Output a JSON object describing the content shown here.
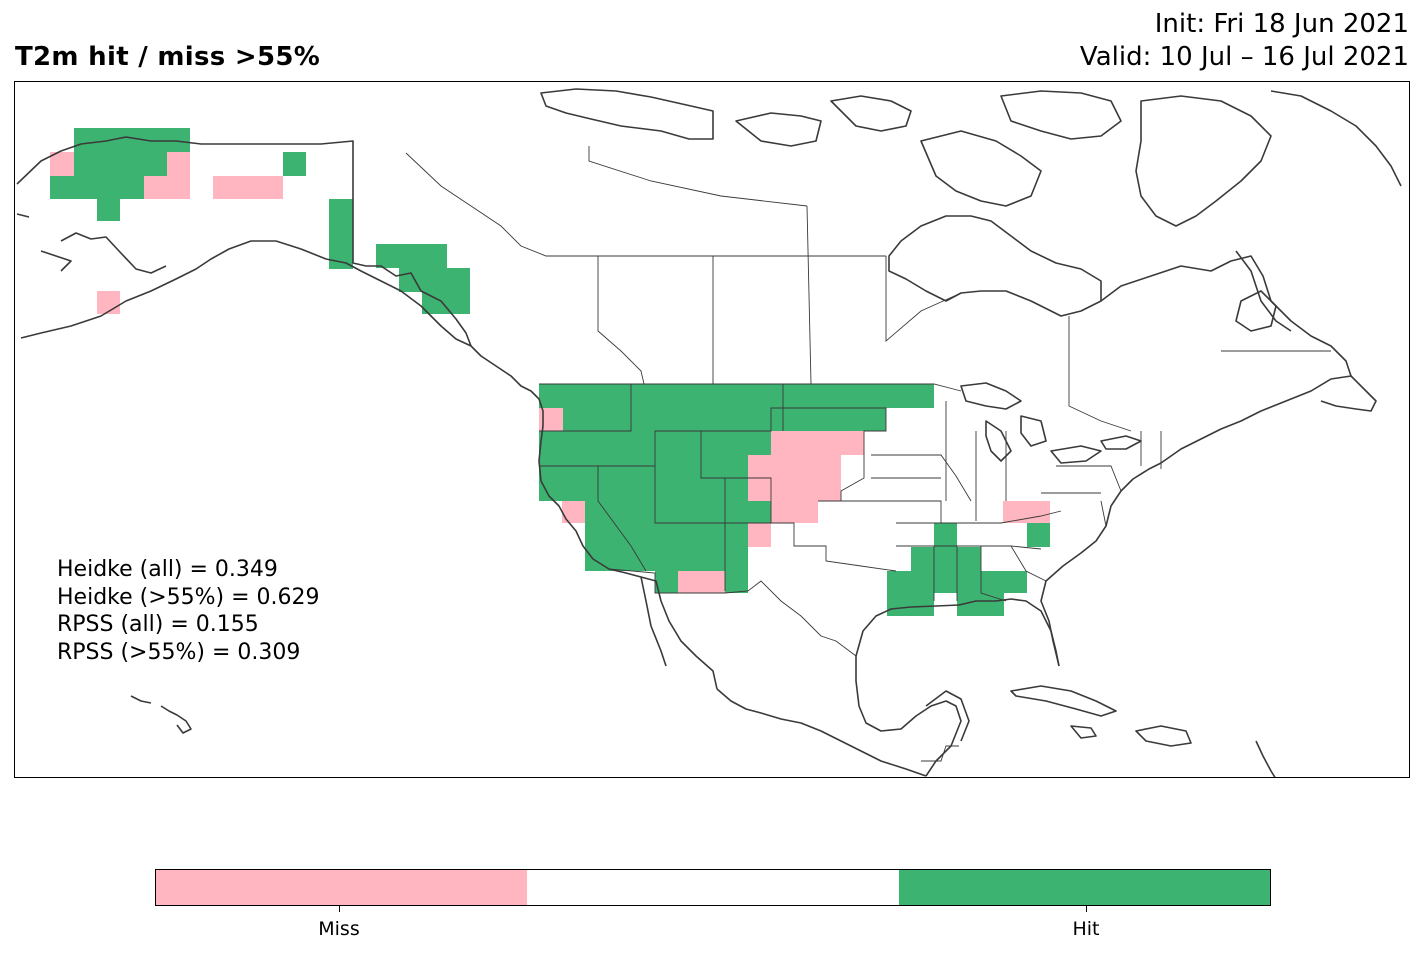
{
  "title": {
    "left": "T2m hit / miss  >55%",
    "init": "Init: Fri 18 Jun 2021",
    "valid": "Valid: 10 Jul – 16 Jul 2021"
  },
  "scores": [
    "Heidke (all) = 0.349",
    "Heidke (>55%) = 0.629",
    "RPSS (all) = 0.155",
    "RPSS (>55%) = 0.309"
  ],
  "legend": {
    "colors": {
      "miss": "#ffb6c1",
      "neutral": "#ffffff",
      "hit": "#3cb371"
    },
    "miss_label": "Miss",
    "hit_label": "Hit"
  },
  "map": {
    "region": "North America",
    "categories": [
      "miss",
      "neutral",
      "hit"
    ],
    "coastline_color": "#3a3a3a",
    "border_color": "#3a3a3a"
  }
}
